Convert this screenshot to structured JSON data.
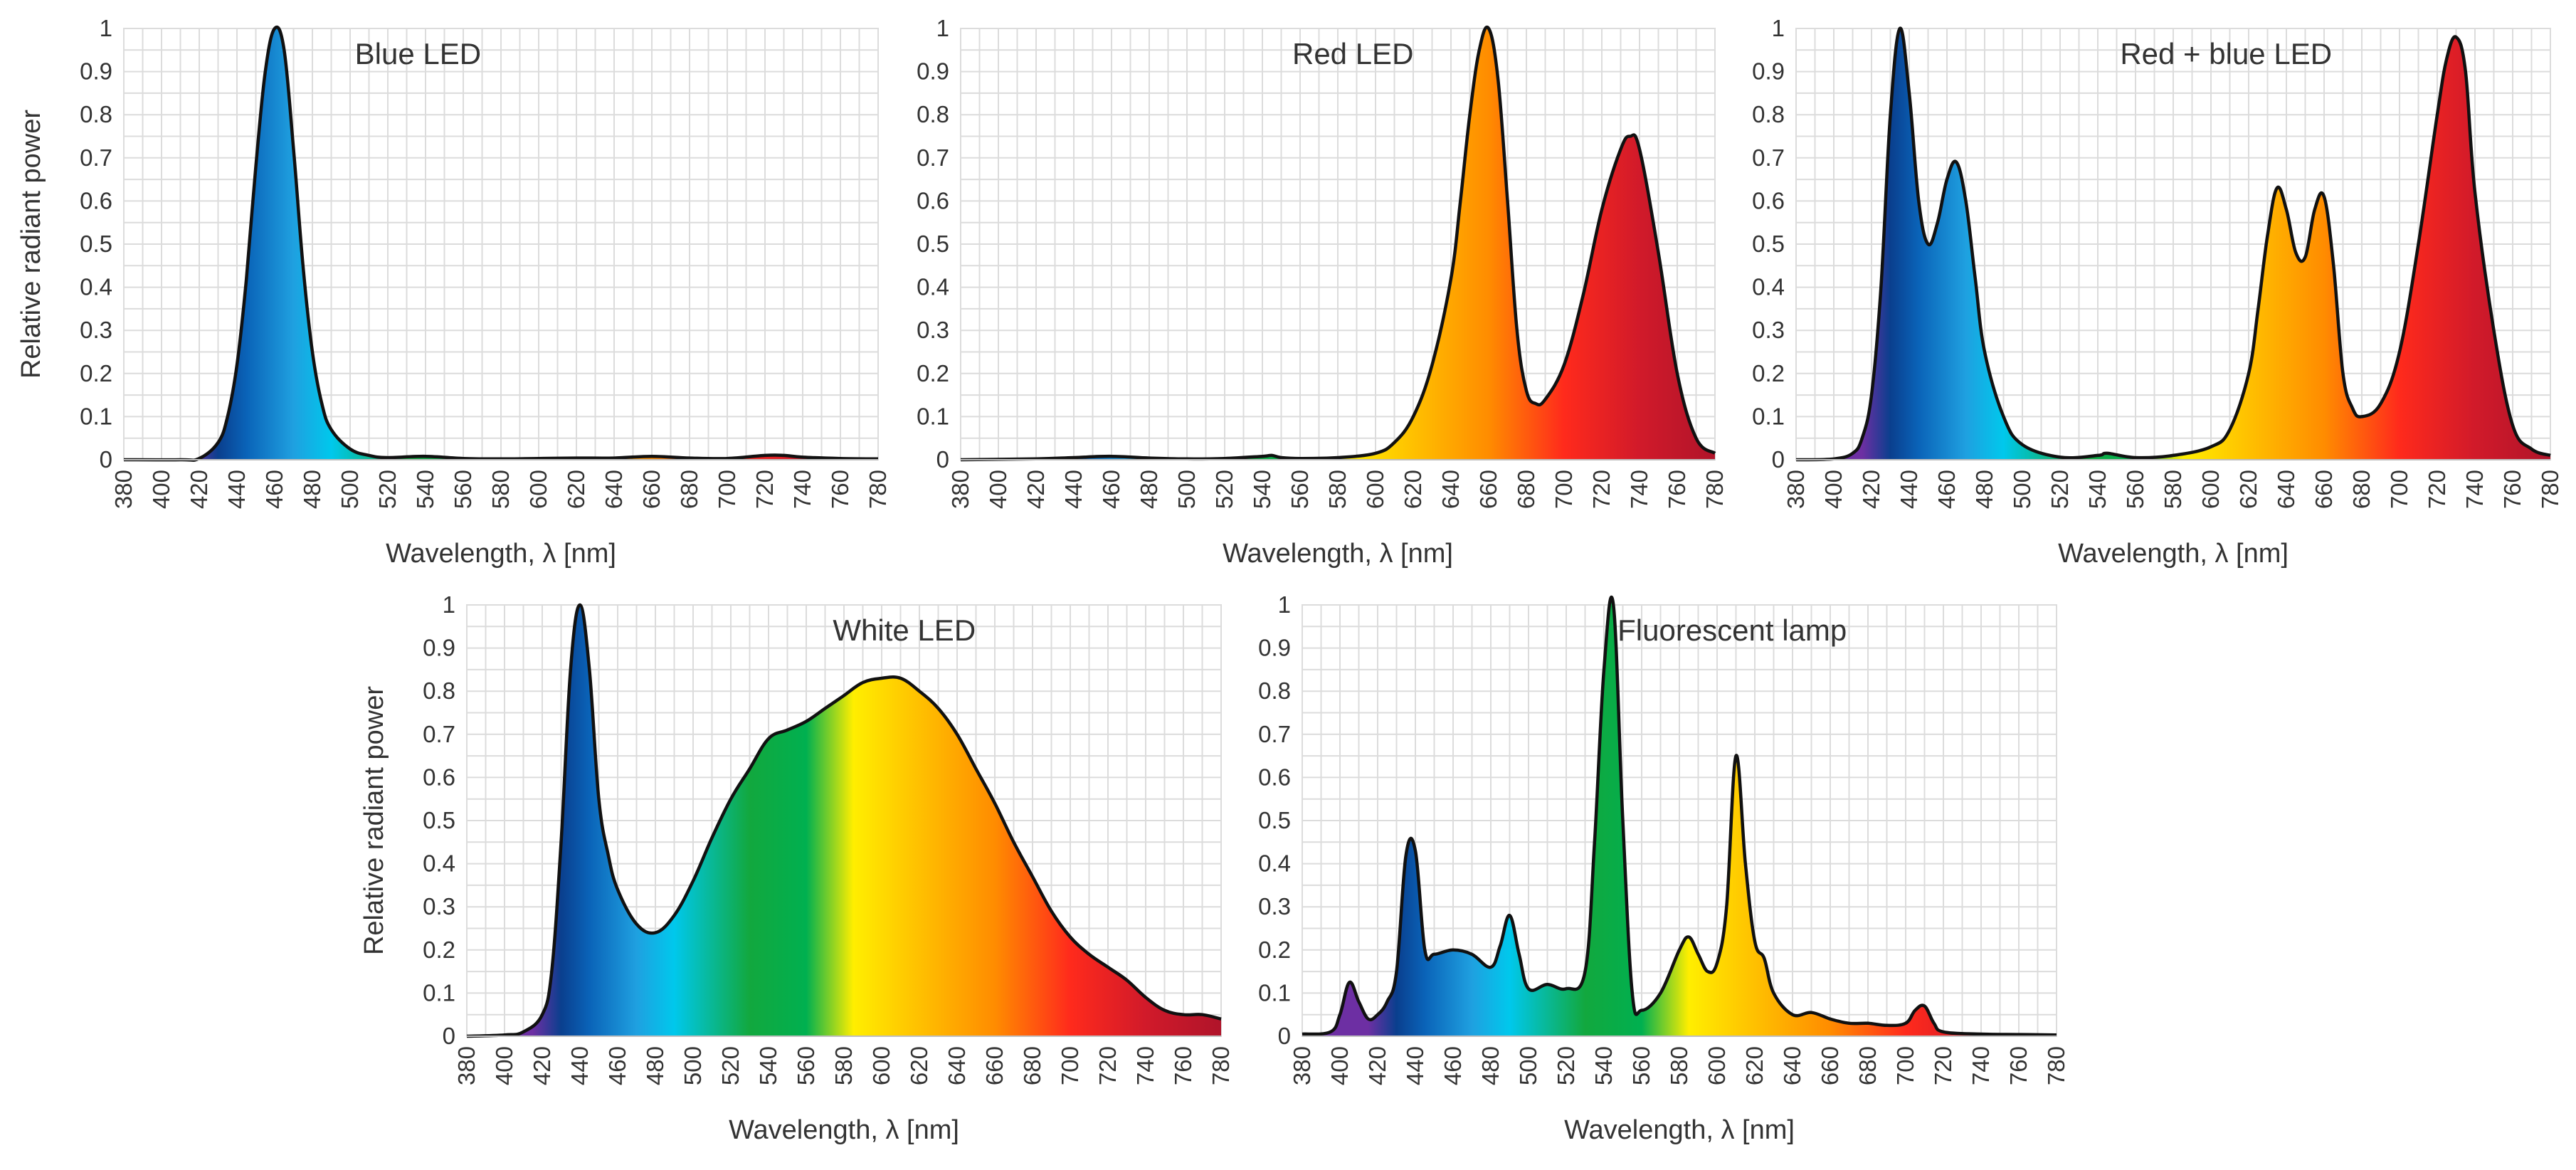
{
  "figure": {
    "spectrum_colors": [
      "#6d2fa3",
      "#0a3f8e",
      "#0a63b8",
      "#1fa0e0",
      "#00c8ec",
      "#12a83e",
      "#00b050",
      "#ffee00",
      "#ffc000",
      "#ff8c00",
      "#ff2a1c",
      "#d11a2a",
      "#b0142a"
    ],
    "line_color": "#111111"
  },
  "chart_data": [
    {
      "type": "area",
      "title": "Blue LED",
      "xlabel": "Wavelength, λ [nm]",
      "ylabel": "Relative radiant power",
      "xlim": [
        380,
        780
      ],
      "ylim": [
        0,
        1
      ],
      "xticks": [
        "380",
        "400",
        "420",
        "440",
        "460",
        "480",
        "500",
        "520",
        "540",
        "560",
        "580",
        "600",
        "620",
        "640",
        "660",
        "680",
        "700",
        "720",
        "740",
        "760",
        "780"
      ],
      "yticks": [
        "0",
        "0.1",
        "0.2",
        "0.3",
        "0.4",
        "0.5",
        "0.6",
        "0.7",
        "0.8",
        "0.9",
        "1"
      ],
      "x": [
        380,
        410,
        420,
        430,
        435,
        440,
        445,
        450,
        455,
        460,
        465,
        470,
        475,
        480,
        485,
        490,
        500,
        510,
        520,
        540,
        560,
        580,
        600,
        620,
        640,
        660,
        680,
        700,
        720,
        730,
        740,
        760,
        780
      ],
      "y": [
        0,
        0,
        0.003,
        0.04,
        0.1,
        0.22,
        0.42,
        0.68,
        0.9,
        1.0,
        0.95,
        0.72,
        0.45,
        0.25,
        0.13,
        0.07,
        0.025,
        0.01,
        0.005,
        0.008,
        0.003,
        0.002,
        0.003,
        0.004,
        0.004,
        0.008,
        0.004,
        0.003,
        0.01,
        0.01,
        0.006,
        0.003,
        0.002
      ]
    },
    {
      "type": "area",
      "title": "Red LED",
      "xlabel": "Wavelength, λ [nm]",
      "ylabel": "",
      "xlim": [
        380,
        780
      ],
      "ylim": [
        0,
        1
      ],
      "xticks": [
        "380",
        "400",
        "420",
        "440",
        "460",
        "480",
        "500",
        "520",
        "540",
        "560",
        "580",
        "600",
        "620",
        "640",
        "660",
        "680",
        "700",
        "720",
        "740",
        "760",
        "780"
      ],
      "yticks": [
        "0",
        "0.1",
        "0.2",
        "0.3",
        "0.4",
        "0.5",
        "0.6",
        "0.7",
        "0.8",
        "0.9",
        "1"
      ],
      "x": [
        380,
        420,
        440,
        460,
        480,
        500,
        520,
        540,
        545,
        550,
        560,
        580,
        600,
        610,
        620,
        630,
        640,
        645,
        650,
        655,
        660,
        665,
        670,
        675,
        680,
        685,
        690,
        700,
        710,
        720,
        730,
        735,
        740,
        750,
        760,
        770,
        780
      ],
      "y": [
        0,
        0.002,
        0.005,
        0.008,
        0.004,
        0.002,
        0.003,
        0.008,
        0.01,
        0.005,
        0.003,
        0.005,
        0.015,
        0.04,
        0.1,
        0.22,
        0.42,
        0.6,
        0.8,
        0.95,
        1.0,
        0.88,
        0.6,
        0.3,
        0.16,
        0.13,
        0.14,
        0.22,
        0.38,
        0.58,
        0.72,
        0.75,
        0.72,
        0.48,
        0.2,
        0.05,
        0.015
      ]
    },
    {
      "type": "area",
      "title": "Red + blue LED",
      "xlabel": "Wavelength, λ [nm]",
      "ylabel": "",
      "xlim": [
        380,
        780
      ],
      "ylim": [
        0,
        1
      ],
      "xticks": [
        "380",
        "400",
        "420",
        "440",
        "460",
        "480",
        "500",
        "520",
        "540",
        "560",
        "580",
        "600",
        "620",
        "640",
        "660",
        "680",
        "700",
        "720",
        "740",
        "760",
        "780"
      ],
      "yticks": [
        "0",
        "0.1",
        "0.2",
        "0.3",
        "0.4",
        "0.5",
        "0.6",
        "0.7",
        "0.8",
        "0.9",
        "1"
      ],
      "x": [
        380,
        400,
        410,
        415,
        420,
        425,
        430,
        435,
        440,
        445,
        450,
        455,
        460,
        465,
        470,
        475,
        480,
        490,
        500,
        520,
        540,
        545,
        560,
        580,
        600,
        610,
        620,
        625,
        630,
        635,
        640,
        645,
        650,
        655,
        660,
        665,
        670,
        675,
        680,
        690,
        700,
        710,
        720,
        725,
        730,
        735,
        740,
        750,
        760,
        770,
        780
      ],
      "y": [
        0,
        0.002,
        0.015,
        0.05,
        0.15,
        0.4,
        0.8,
        1.0,
        0.85,
        0.6,
        0.5,
        0.55,
        0.65,
        0.69,
        0.6,
        0.42,
        0.25,
        0.1,
        0.035,
        0.006,
        0.01,
        0.015,
        0.005,
        0.01,
        0.03,
        0.07,
        0.2,
        0.35,
        0.52,
        0.63,
        0.58,
        0.48,
        0.47,
        0.58,
        0.61,
        0.45,
        0.2,
        0.12,
        0.1,
        0.13,
        0.25,
        0.5,
        0.8,
        0.93,
        0.98,
        0.9,
        0.62,
        0.3,
        0.08,
        0.025,
        0.01
      ]
    },
    {
      "type": "area",
      "title": "White LED",
      "xlabel": "Wavelength, λ [nm]",
      "ylabel": "Relative radiant power",
      "xlim": [
        380,
        780
      ],
      "ylim": [
        0,
        1
      ],
      "xticks": [
        "380",
        "400",
        "420",
        "440",
        "460",
        "480",
        "500",
        "520",
        "540",
        "560",
        "580",
        "600",
        "620",
        "640",
        "660",
        "680",
        "700",
        "720",
        "740",
        "760",
        "780"
      ],
      "yticks": [
        "0",
        "0.1",
        "0.2",
        "0.3",
        "0.4",
        "0.5",
        "0.6",
        "0.7",
        "0.8",
        "0.9",
        "1"
      ],
      "x": [
        380,
        400,
        410,
        420,
        425,
        430,
        435,
        440,
        445,
        450,
        455,
        460,
        470,
        480,
        490,
        500,
        510,
        520,
        530,
        540,
        550,
        560,
        570,
        580,
        590,
        600,
        610,
        620,
        630,
        640,
        650,
        660,
        670,
        680,
        690,
        700,
        710,
        720,
        730,
        740,
        750,
        760,
        770,
        780
      ],
      "y": [
        0,
        0.003,
        0.01,
        0.05,
        0.15,
        0.45,
        0.85,
        1.0,
        0.85,
        0.55,
        0.42,
        0.34,
        0.26,
        0.24,
        0.28,
        0.36,
        0.46,
        0.55,
        0.62,
        0.69,
        0.71,
        0.73,
        0.76,
        0.79,
        0.82,
        0.83,
        0.83,
        0.8,
        0.76,
        0.7,
        0.62,
        0.54,
        0.45,
        0.37,
        0.29,
        0.23,
        0.19,
        0.16,
        0.13,
        0.09,
        0.06,
        0.05,
        0.05,
        0.04
      ]
    },
    {
      "type": "area",
      "title": "Fluorescent lamp",
      "xlabel": "Wavelength, λ [nm]",
      "ylabel": "",
      "xlim": [
        380,
        780
      ],
      "ylim": [
        0,
        1
      ],
      "xticks": [
        "380",
        "400",
        "420",
        "440",
        "460",
        "480",
        "500",
        "520",
        "540",
        "560",
        "580",
        "600",
        "620",
        "640",
        "660",
        "680",
        "700",
        "720",
        "740",
        "760",
        "780"
      ],
      "yticks": [
        "0",
        "0.1",
        "0.2",
        "0.3",
        "0.4",
        "0.5",
        "0.6",
        "0.7",
        "0.8",
        "0.9",
        "1"
      ],
      "x": [
        380,
        395,
        400,
        405,
        410,
        415,
        420,
        425,
        430,
        435,
        440,
        445,
        450,
        460,
        470,
        480,
        485,
        490,
        495,
        500,
        510,
        520,
        530,
        535,
        540,
        545,
        550,
        555,
        560,
        570,
        580,
        585,
        590,
        595,
        600,
        605,
        610,
        615,
        620,
        625,
        630,
        640,
        650,
        660,
        670,
        680,
        690,
        700,
        705,
        710,
        715,
        720,
        740,
        760,
        780
      ],
      "y": [
        0.005,
        0.01,
        0.05,
        0.125,
        0.08,
        0.04,
        0.05,
        0.08,
        0.15,
        0.42,
        0.43,
        0.2,
        0.19,
        0.2,
        0.19,
        0.16,
        0.21,
        0.28,
        0.19,
        0.11,
        0.12,
        0.11,
        0.15,
        0.45,
        0.85,
        1.0,
        0.5,
        0.1,
        0.06,
        0.1,
        0.2,
        0.23,
        0.19,
        0.15,
        0.17,
        0.3,
        0.65,
        0.4,
        0.22,
        0.18,
        0.1,
        0.05,
        0.055,
        0.04,
        0.03,
        0.03,
        0.025,
        0.03,
        0.06,
        0.07,
        0.03,
        0.01,
        0.005,
        0.004,
        0.003
      ]
    }
  ]
}
